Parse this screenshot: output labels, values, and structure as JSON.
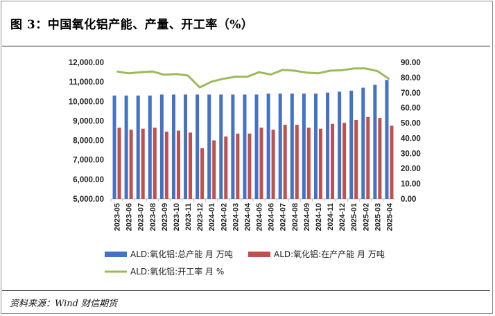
{
  "header": {
    "title": "图 3：中国氧化铝产能、产量、开工率（%）"
  },
  "footer": {
    "source": "资料来源：Wind  财信期货"
  },
  "colors": {
    "capacity": "#4472c4",
    "output": "#c0504d",
    "rate": "#9bbb59"
  },
  "chart_data": {
    "type": "bar",
    "categories": [
      "2023-05",
      "2023-06",
      "2023-07",
      "2023-08",
      "2023-09",
      "2023-10",
      "2023-11",
      "2023-12",
      "2024-01",
      "2024-02",
      "2024-03",
      "2024-04",
      "2024-05",
      "2024-06",
      "2024-07",
      "2024-08",
      "2024-09",
      "2024-10",
      "2024-11",
      "2024-12",
      "2025-01",
      "2025-02",
      "2025-03",
      "2025-04"
    ],
    "y_left": {
      "ticks": [
        "12,000.00",
        "11,000.00",
        "10,000.00",
        "9,000.00",
        "8,000.00",
        "7,000.00",
        "6,000.00",
        "5,000.00"
      ],
      "ylim": [
        5000,
        12000
      ]
    },
    "y_right": {
      "ticks": [
        "90.00",
        "80.00",
        "70.00",
        "60.00",
        "50.00",
        "40.00",
        "30.00",
        "20.00",
        "10.00",
        "0.00"
      ],
      "ylim": [
        0,
        90
      ]
    },
    "series": [
      {
        "name": "ALD:氧化铝:总产能 月 万吨",
        "type": "bar",
        "axis": "left",
        "values": [
          10300,
          10300,
          10300,
          10300,
          10350,
          10350,
          10350,
          10350,
          10350,
          10350,
          10350,
          10350,
          10350,
          10400,
          10400,
          10400,
          10400,
          10400,
          10450,
          10500,
          10550,
          10700,
          10850,
          11100
        ]
      },
      {
        "name": "ALD:氧化铝:在产产能 月 万吨",
        "type": "bar",
        "axis": "left",
        "values": [
          8650,
          8550,
          8600,
          8650,
          8450,
          8500,
          8400,
          7600,
          8000,
          8200,
          8350,
          8350,
          8650,
          8550,
          8800,
          8800,
          8650,
          8600,
          8850,
          8900,
          9050,
          9200,
          9150,
          8750
        ]
      },
      {
        "name": "ALD:氧化铝:开工率 月 %",
        "type": "line",
        "axis": "right",
        "values": [
          84.0,
          82.8,
          83.5,
          84.0,
          81.8,
          82.3,
          81.3,
          73.5,
          77.3,
          79.2,
          80.5,
          80.5,
          83.5,
          82.0,
          85.0,
          84.5,
          83.3,
          82.8,
          84.5,
          84.8,
          86.0,
          86.0,
          84.3,
          79.0
        ]
      }
    ]
  }
}
